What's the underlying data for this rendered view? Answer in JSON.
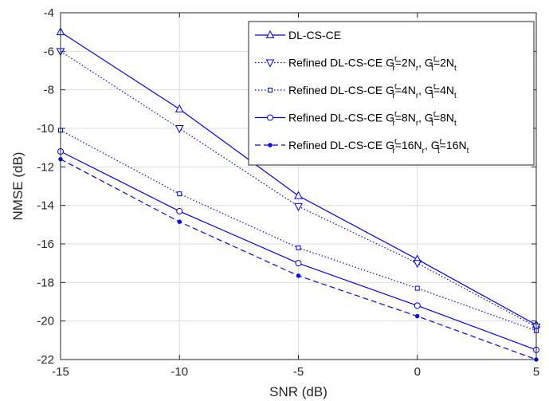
{
  "chart_data": {
    "type": "line",
    "xlabel": "SNR (dB)",
    "ylabel": "NMSE (dB)",
    "xlim": [
      -15,
      5
    ],
    "ylim": [
      -22,
      -4
    ],
    "xticks": [
      "-15",
      "-10",
      "-5",
      "0",
      "5"
    ],
    "yticks": [
      "-4",
      "-6",
      "-8",
      "-10",
      "-12",
      "-14",
      "-16",
      "-18",
      "-20",
      "-22"
    ],
    "grid": true,
    "legend_position": "top-right",
    "x": [
      -15,
      -10,
      -5,
      0,
      5
    ],
    "series": [
      {
        "name": "DL-CS-CE",
        "values": [
          -5.0,
          -9.0,
          -13.5,
          -16.8,
          -20.2
        ],
        "line": "solid",
        "marker": "triangle-up",
        "legend": {
          "main": "DL-CS-CE"
        }
      },
      {
        "name": "Refined DL-CS-CE G^r_r=2N_r, G^r_t=2N_t",
        "values": [
          -6.0,
          -10.0,
          -14.05,
          -17.0,
          -20.3
        ],
        "line": "dotted",
        "marker": "triangle-down",
        "legend": {
          "main": "Refined DL-CS-CE G",
          "s1": "r",
          "b1": "r",
          "m1": "=2N",
          "b2": "r",
          "m2": ", G",
          "s2": "r",
          "b3": "t",
          "m3": "=2N",
          "b4": "t"
        }
      },
      {
        "name": "Refined DL-CS-CE G^r_r=4N_r, G^r_t=4N_t",
        "values": [
          -10.1,
          -13.4,
          -16.2,
          -18.3,
          -20.5
        ],
        "line": "dotted",
        "marker": "square",
        "legend": {
          "main": "Refined DL-CS-CE G",
          "s1": "r",
          "b1": "r",
          "m1": "=4N",
          "b2": "r",
          "m2": ", G",
          "s2": "r",
          "b3": "t",
          "m3": "=4N",
          "b4": "t"
        }
      },
      {
        "name": "Refined DL-CS-CE G^r_r=8N_r, G^r_t=8N_t",
        "values": [
          -11.2,
          -14.3,
          -17.0,
          -19.2,
          -21.5
        ],
        "line": "solid",
        "marker": "circle",
        "legend": {
          "main": "Refined DL-CS-CE G",
          "s1": "r",
          "b1": "r",
          "m1": "=8N",
          "b2": "r",
          "m2": ", G",
          "s2": "r",
          "b3": "t",
          "m3": "=8N",
          "b4": "t"
        }
      },
      {
        "name": "Refined DL-CS-CE G^r_r=16N_r, G^r_t=16N_t",
        "values": [
          -11.6,
          -14.85,
          -17.65,
          -19.75,
          -22.0
        ],
        "line": "dashed",
        "marker": "dot",
        "legend": {
          "main": "Refined DL-CS-CE G",
          "s1": "r",
          "b1": "r",
          "m1": "=16N",
          "b2": "r",
          "m2": ", G",
          "s2": "r",
          "b3": "t",
          "m3": "=16N",
          "b4": "t"
        }
      }
    ],
    "line_color": "#0000ff"
  }
}
